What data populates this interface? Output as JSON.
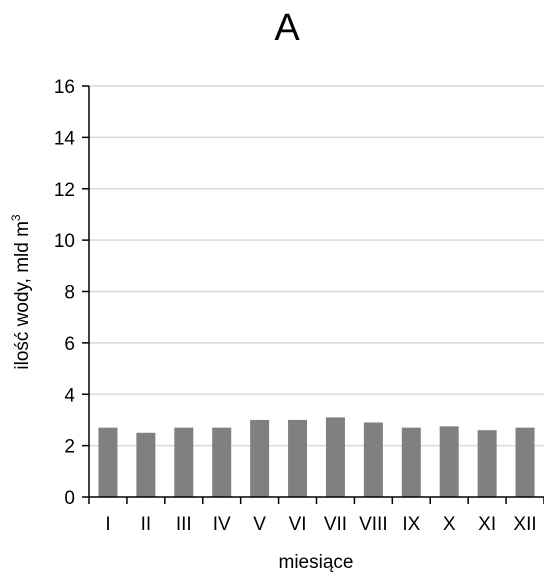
{
  "chart_data": {
    "type": "bar",
    "title": "A",
    "xlabel": "miesiące",
    "ylabel": "ilość wody, mld m",
    "ylabel_superscript": "3",
    "categories": [
      "I",
      "II",
      "III",
      "IV",
      "V",
      "VI",
      "VII",
      "VIII",
      "IX",
      "X",
      "XI",
      "XII"
    ],
    "values": [
      2.7,
      2.5,
      2.7,
      2.7,
      3.0,
      3.0,
      3.1,
      2.9,
      2.7,
      2.75,
      2.6,
      2.7
    ],
    "ylim": [
      0,
      16
    ],
    "yticks": [
      "0",
      "2",
      "4",
      "6",
      "8",
      "10",
      "12",
      "14",
      "16"
    ],
    "grid": true,
    "bar_color": "#808080",
    "grid_color": "#d9d9d9"
  }
}
